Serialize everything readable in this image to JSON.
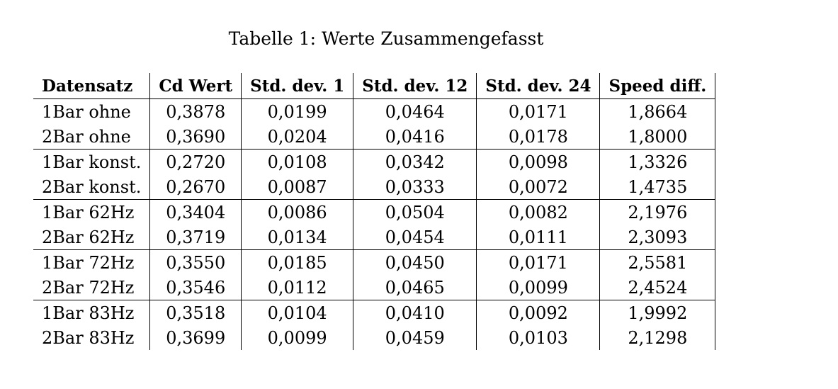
{
  "caption": "Tabelle 1: Werte Zusammengefasst",
  "table": {
    "headers": [
      "Datensatz",
      "Cd Wert",
      "Std. dev. 1",
      "Std. dev. 12",
      "Std. dev. 24",
      "Speed diff."
    ],
    "rows": [
      [
        "1Bar ohne",
        "0,3878",
        "0,0199",
        "0,0464",
        "0,0171",
        "1,8664"
      ],
      [
        "2Bar ohne",
        "0,3690",
        "0,0204",
        "0,0416",
        "0,0178",
        "1,8000"
      ],
      [
        "1Bar konst.",
        "0,2720",
        "0,0108",
        "0,0342",
        "0,0098",
        "1,3326"
      ],
      [
        "2Bar konst.",
        "0,2670",
        "0,0087",
        "0,0333",
        "0,0072",
        "1,4735"
      ],
      [
        "1Bar 62Hz",
        "0,3404",
        "0,0086",
        "0,0504",
        "0,0082",
        "2,1976"
      ],
      [
        "2Bar 62Hz",
        "0,3719",
        "0,0134",
        "0,0454",
        "0,0111",
        "2,3093"
      ],
      [
        "1Bar 72Hz",
        "0,3550",
        "0,0185",
        "0,0450",
        "0,0171",
        "2,5581"
      ],
      [
        "2Bar 72Hz",
        "0,3546",
        "0,0112",
        "0,0465",
        "0,0099",
        "2,4524"
      ],
      [
        "1Bar 83Hz",
        "0,3518",
        "0,0104",
        "0,0410",
        "0,0092",
        "1,9992"
      ],
      [
        "2Bar 83Hz",
        "0,3699",
        "0,0099",
        "0,0459",
        "0,0103",
        "2,1298"
      ]
    ]
  }
}
